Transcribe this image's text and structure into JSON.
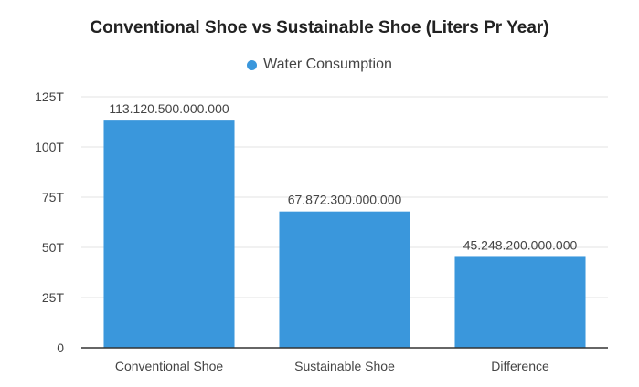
{
  "chart_data": {
    "type": "bar",
    "title": "Conventional Shoe vs Sustainable Shoe (Liters Pr Year)",
    "categories": [
      "Conventional Shoe",
      "Sustainable Shoe",
      "Difference"
    ],
    "series": [
      {
        "name": "Water Consumption",
        "values": [
          113120500000000,
          67872300000000,
          45248200000000
        ],
        "labels": [
          "113.120.500.000.000",
          "67.872.300.000.000",
          "45.248.200.000.000"
        ],
        "color": "#3a97dc"
      }
    ],
    "ylim": [
      0,
      125000000000000
    ],
    "yticks": [
      {
        "value": 0,
        "label": "0"
      },
      {
        "value": 25000000000000,
        "label": "25T"
      },
      {
        "value": 50000000000000,
        "label": "50T"
      },
      {
        "value": 75000000000000,
        "label": "75T"
      },
      {
        "value": 100000000000000,
        "label": "100T"
      },
      {
        "value": 125000000000000,
        "label": "125T"
      }
    ],
    "xlabel": "",
    "ylabel": "",
    "grid": true,
    "legend_position": "top"
  }
}
